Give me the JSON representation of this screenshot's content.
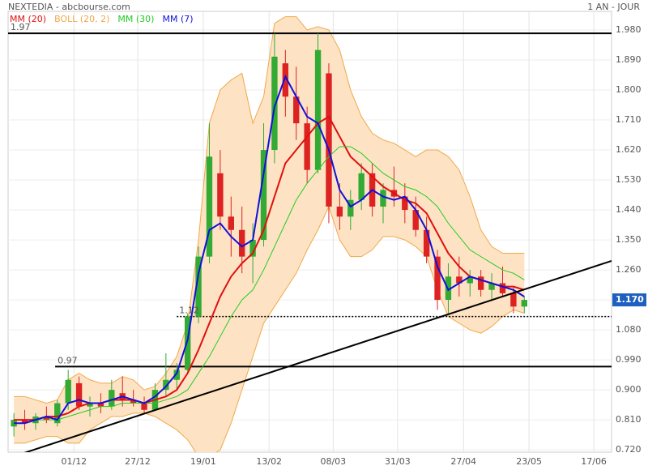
{
  "chart_data": {
    "type": "candlestick",
    "title": "NEXTEDIA - abcbourse.com",
    "period": "1 AN - JOUR",
    "x": [
      0,
      3,
      6,
      9,
      12,
      15,
      18,
      21,
      24,
      27,
      30,
      33,
      36,
      39,
      42,
      45,
      48,
      51,
      54,
      57,
      60,
      63,
      66,
      69,
      72,
      75,
      78,
      81,
      84,
      87,
      90,
      93,
      96,
      99,
      102,
      105,
      108,
      111,
      114,
      117,
      120,
      123,
      126,
      129,
      132,
      135,
      138,
      141
    ],
    "open": [
      0.79,
      0.81,
      0.8,
      0.82,
      0.8,
      0.86,
      0.92,
      0.85,
      0.86,
      0.85,
      0.89,
      0.87,
      0.86,
      0.84,
      0.9,
      0.93,
      0.96,
      1.12,
      1.3,
      1.55,
      1.42,
      1.38,
      1.3,
      1.35,
      1.62,
      1.88,
      1.78,
      1.7,
      1.56,
      1.85,
      1.45,
      1.42,
      1.47,
      1.55,
      1.45,
      1.5,
      1.48,
      1.44,
      1.38,
      1.3,
      1.17,
      1.24,
      1.22,
      1.24,
      1.2,
      1.22,
      1.19,
      1.15
    ],
    "high": [
      0.83,
      0.84,
      0.83,
      0.85,
      0.87,
      0.96,
      0.94,
      0.88,
      0.89,
      0.93,
      0.94,
      0.9,
      0.88,
      0.92,
      1.01,
      0.98,
      1.13,
      1.33,
      1.7,
      1.62,
      1.48,
      1.45,
      1.4,
      1.7,
      1.97,
      1.92,
      1.87,
      1.75,
      1.97,
      1.88,
      1.52,
      1.5,
      1.58,
      1.58,
      1.52,
      1.57,
      1.52,
      1.48,
      1.42,
      1.32,
      1.28,
      1.3,
      1.26,
      1.26,
      1.25,
      1.27,
      1.21,
      1.18
    ],
    "low": [
      0.76,
      0.78,
      0.78,
      0.8,
      0.79,
      0.84,
      0.84,
      0.82,
      0.83,
      0.84,
      0.85,
      0.85,
      0.83,
      0.84,
      0.88,
      0.9,
      0.95,
      1.1,
      1.28,
      1.38,
      1.3,
      1.25,
      1.22,
      1.33,
      1.58,
      1.72,
      1.65,
      1.52,
      1.55,
      1.4,
      1.38,
      1.38,
      1.44,
      1.42,
      1.4,
      1.45,
      1.4,
      1.36,
      1.28,
      1.14,
      1.13,
      1.18,
      1.18,
      1.18,
      1.17,
      1.18,
      1.13,
      1.13
    ],
    "close": [
      0.81,
      0.8,
      0.82,
      0.81,
      0.86,
      0.93,
      0.85,
      0.86,
      0.85,
      0.9,
      0.87,
      0.86,
      0.84,
      0.9,
      0.93,
      0.96,
      1.12,
      1.3,
      1.6,
      1.42,
      1.38,
      1.3,
      1.35,
      1.62,
      1.9,
      1.78,
      1.7,
      1.56,
      1.92,
      1.45,
      1.42,
      1.47,
      1.55,
      1.45,
      1.5,
      1.48,
      1.44,
      1.38,
      1.3,
      1.17,
      1.24,
      1.22,
      1.24,
      1.2,
      1.22,
      1.19,
      1.15,
      1.17
    ],
    "up_color": "#33aa33",
    "down_color": "#dd2222",
    "bollinger": {
      "name": "BOLL (20, 2)",
      "color": "#f0a848",
      "fill": "#fde3c4",
      "upper": [
        0.88,
        0.88,
        0.87,
        0.86,
        0.87,
        0.93,
        0.95,
        0.93,
        0.92,
        0.92,
        0.94,
        0.93,
        0.9,
        0.91,
        0.95,
        1.0,
        1.1,
        1.35,
        1.7,
        1.8,
        1.83,
        1.85,
        1.7,
        1.78,
        2.0,
        2.02,
        2.02,
        1.98,
        1.99,
        1.98,
        1.92,
        1.8,
        1.72,
        1.67,
        1.65,
        1.64,
        1.62,
        1.6,
        1.62,
        1.62,
        1.6,
        1.56,
        1.48,
        1.38,
        1.33,
        1.31,
        1.31,
        1.31
      ],
      "lower": [
        0.74,
        0.74,
        0.75,
        0.76,
        0.76,
        0.74,
        0.74,
        0.78,
        0.8,
        0.82,
        0.82,
        0.83,
        0.83,
        0.82,
        0.8,
        0.78,
        0.75,
        0.7,
        0.7,
        0.72,
        0.8,
        0.9,
        1.0,
        1.1,
        1.15,
        1.2,
        1.25,
        1.32,
        1.38,
        1.45,
        1.35,
        1.3,
        1.3,
        1.32,
        1.36,
        1.36,
        1.35,
        1.33,
        1.3,
        1.2,
        1.12,
        1.1,
        1.08,
        1.07,
        1.09,
        1.12,
        1.14,
        1.13
      ]
    },
    "series": [
      {
        "name": "MM (20)",
        "color": "#e01010",
        "values": [
          0.81,
          0.81,
          0.81,
          0.82,
          0.82,
          0.83,
          0.85,
          0.86,
          0.86,
          0.87,
          0.87,
          0.87,
          0.86,
          0.87,
          0.88,
          0.9,
          0.95,
          1.02,
          1.1,
          1.18,
          1.24,
          1.28,
          1.31,
          1.38,
          1.48,
          1.58,
          1.62,
          1.66,
          1.7,
          1.72,
          1.66,
          1.6,
          1.57,
          1.54,
          1.51,
          1.49,
          1.47,
          1.46,
          1.43,
          1.37,
          1.31,
          1.27,
          1.24,
          1.23,
          1.22,
          1.21,
          1.21,
          1.2
        ]
      },
      {
        "name": "MM (30)",
        "color": "#22cc22",
        "values": [
          0.8,
          0.8,
          0.81,
          0.81,
          0.81,
          0.82,
          0.83,
          0.84,
          0.85,
          0.85,
          0.86,
          0.86,
          0.86,
          0.86,
          0.87,
          0.88,
          0.9,
          0.95,
          1.0,
          1.06,
          1.12,
          1.17,
          1.2,
          1.26,
          1.33,
          1.4,
          1.47,
          1.52,
          1.56,
          1.6,
          1.63,
          1.63,
          1.61,
          1.58,
          1.55,
          1.53,
          1.51,
          1.5,
          1.48,
          1.45,
          1.4,
          1.36,
          1.32,
          1.3,
          1.28,
          1.26,
          1.25,
          1.23
        ]
      },
      {
        "name": "MM (7)",
        "color": "#1010dd",
        "values": [
          0.8,
          0.8,
          0.81,
          0.82,
          0.81,
          0.86,
          0.87,
          0.86,
          0.86,
          0.87,
          0.88,
          0.87,
          0.86,
          0.88,
          0.91,
          0.95,
          1.05,
          1.25,
          1.38,
          1.4,
          1.36,
          1.33,
          1.35,
          1.55,
          1.75,
          1.84,
          1.78,
          1.72,
          1.7,
          1.62,
          1.5,
          1.45,
          1.47,
          1.5,
          1.48,
          1.47,
          1.48,
          1.44,
          1.38,
          1.27,
          1.2,
          1.22,
          1.24,
          1.23,
          1.22,
          1.21,
          1.2,
          1.18
        ]
      }
    ],
    "legend_order": [
      0,
      "bollinger",
      1,
      2
    ],
    "levels": [
      1.97,
      0.97,
      1.12
    ],
    "level_styles": [
      "solid",
      "solid",
      "dotted"
    ],
    "level_start": [
      -1.6,
      11.4,
      45
    ],
    "trendline": {
      "x": [
        -1.6,
        165.1
      ],
      "y": [
        0.695,
        1.287
      ]
    },
    "last": {
      "value": 1.17,
      "label": "1.170"
    },
    "xlim": [
      -1.6,
      165.1
    ],
    "xticks": [
      {
        "value": 16.6,
        "label": "01/12"
      },
      {
        "value": 34.2,
        "label": "27/12"
      },
      {
        "value": 52.3,
        "label": "19/01"
      },
      {
        "value": 70.5,
        "label": "13/02"
      },
      {
        "value": 88.2,
        "label": "08/03"
      },
      {
        "value": 106,
        "label": "31/03"
      },
      {
        "value": 124.2,
        "label": "27/04"
      },
      {
        "value": 142.3,
        "label": "23/05"
      },
      {
        "value": 160.2,
        "label": "17/06"
      }
    ],
    "ylim": [
      0.713,
      2.036
    ],
    "yticks": [
      {
        "value": 0.72,
        "label": "0.720"
      },
      {
        "value": 0.81,
        "label": "0.810"
      },
      {
        "value": 0.9,
        "label": "0.900"
      },
      {
        "value": 0.99,
        "label": "0.990"
      },
      {
        "value": 1.08,
        "label": "1.080"
      },
      {
        "value": 1.17,
        "label": "1.170"
      },
      {
        "value": 1.26,
        "label": "1.260"
      },
      {
        "value": 1.35,
        "label": "1.350"
      },
      {
        "value": 1.44,
        "label": "1.440"
      },
      {
        "value": 1.53,
        "label": "1.530"
      },
      {
        "value": 1.62,
        "label": "1.620"
      },
      {
        "value": 1.71,
        "label": "1.710"
      },
      {
        "value": 1.8,
        "label": "1.800"
      },
      {
        "value": 1.89,
        "label": "1.890"
      },
      {
        "value": 1.98,
        "label": "1.980"
      }
    ],
    "grid": true
  }
}
